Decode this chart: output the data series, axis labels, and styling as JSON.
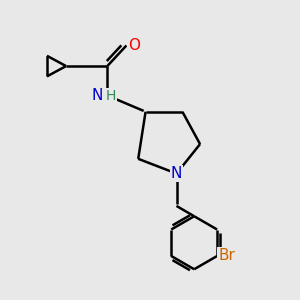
{
  "background_color": "#e8e8e8",
  "bond_color": "#000000",
  "bond_width": 1.8,
  "atom_colors": {
    "O": "#ff0000",
    "N": "#0000cc",
    "Br": "#cc6600",
    "H": "#2e8b57",
    "C": "#000000"
  },
  "font_size": 10,
  "fig_size": [
    3.0,
    3.0
  ],
  "dpi": 100
}
